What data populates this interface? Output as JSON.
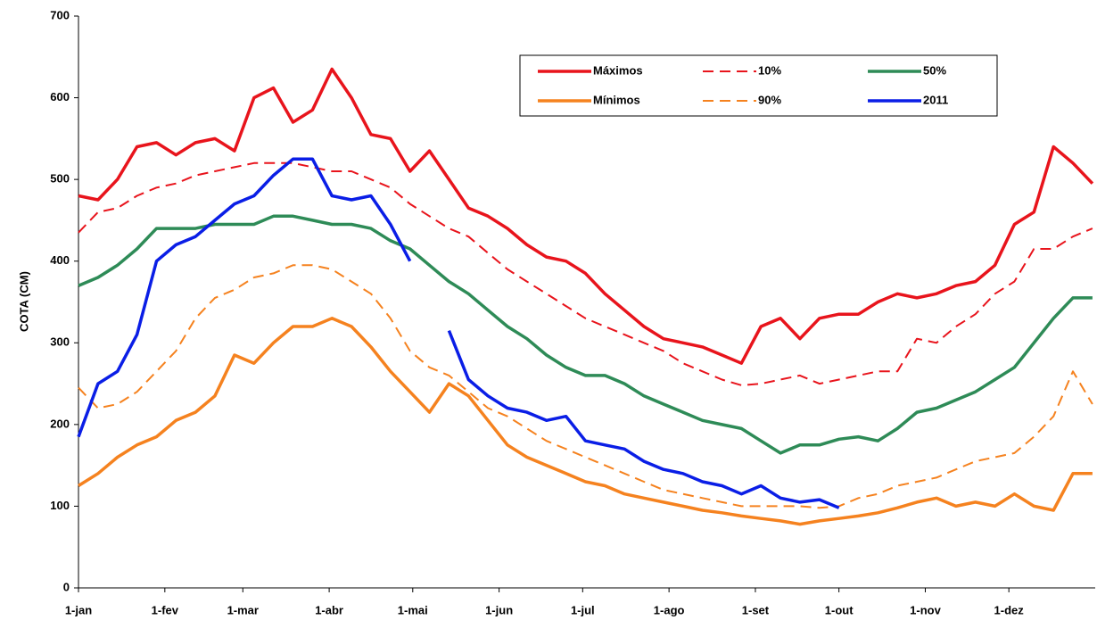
{
  "chart_data": {
    "type": "line",
    "y_label": "COTA (CM)",
    "x": [
      0,
      7,
      14,
      21,
      28,
      35,
      42,
      49,
      56,
      63,
      70,
      77,
      84,
      91,
      98,
      105,
      112,
      119,
      126,
      133,
      140,
      147,
      154,
      161,
      168,
      175,
      182,
      189,
      196,
      203,
      210,
      217,
      224,
      231,
      238,
      245,
      252,
      259,
      266,
      273,
      280,
      287,
      294,
      301,
      308,
      315,
      322,
      329,
      336,
      343,
      350,
      357,
      364
    ],
    "xlim": [
      0,
      365
    ],
    "xticks": [
      {
        "value": 0,
        "label": "1-jan"
      },
      {
        "value": 31,
        "label": "1-fev"
      },
      {
        "value": 59,
        "label": "1-mar"
      },
      {
        "value": 90,
        "label": "1-abr"
      },
      {
        "value": 120,
        "label": "1-mai"
      },
      {
        "value": 151,
        "label": "1-jun"
      },
      {
        "value": 181,
        "label": "1-jul"
      },
      {
        "value": 212,
        "label": "1-ago"
      },
      {
        "value": 243,
        "label": "1-set"
      },
      {
        "value": 273,
        "label": "1-out"
      },
      {
        "value": 304,
        "label": "1-nov"
      },
      {
        "value": 334,
        "label": "1-dez"
      }
    ],
    "ylim": [
      0,
      700
    ],
    "yticks": [
      0,
      100,
      200,
      300,
      400,
      500,
      600,
      700
    ],
    "grid": false,
    "legend": "top-right",
    "series": [
      {
        "name": "Máximos",
        "color": "#e8141c",
        "dash": false,
        "values": [
          480,
          475,
          500,
          540,
          545,
          530,
          545,
          550,
          535,
          600,
          612,
          570,
          585,
          635,
          600,
          555,
          550,
          510,
          535,
          500,
          465,
          455,
          440,
          420,
          405,
          400,
          385,
          360,
          340,
          320,
          305,
          300,
          295,
          285,
          275,
          320,
          330,
          305,
          330,
          335,
          335,
          350,
          360,
          355,
          360,
          370,
          375,
          395,
          445,
          460,
          540,
          520,
          495
        ]
      },
      {
        "name": "10%",
        "color": "#e8141c",
        "dash": true,
        "values": [
          435,
          460,
          465,
          480,
          490,
          495,
          505,
          510,
          515,
          520,
          520,
          520,
          515,
          510,
          510,
          500,
          490,
          470,
          455,
          440,
          430,
          410,
          390,
          375,
          360,
          345,
          330,
          320,
          310,
          300,
          290,
          275,
          265,
          255,
          248,
          250,
          255,
          260,
          250,
          255,
          260,
          265,
          265,
          305,
          300,
          320,
          335,
          360,
          375,
          415,
          415,
          430,
          440
        ]
      },
      {
        "name": "50%",
        "color": "#2e8b57",
        "dash": false,
        "values": [
          370,
          380,
          395,
          415,
          440,
          440,
          440,
          445,
          445,
          445,
          455,
          455,
          450,
          445,
          445,
          440,
          425,
          415,
          395,
          375,
          360,
          340,
          320,
          305,
          285,
          270,
          260,
          260,
          250,
          235,
          225,
          215,
          205,
          200,
          195,
          180,
          165,
          175,
          175,
          182,
          185,
          180,
          195,
          215,
          220,
          230,
          240,
          255,
          270,
          300,
          330,
          355,
          355
        ]
      },
      {
        "name": "Mínimos",
        "color": "#f5821f",
        "dash": false,
        "values": [
          125,
          140,
          160,
          175,
          185,
          205,
          215,
          235,
          285,
          275,
          300,
          320,
          320,
          330,
          320,
          295,
          265,
          240,
          215,
          250,
          235,
          205,
          175,
          160,
          150,
          140,
          130,
          125,
          115,
          110,
          105,
          100,
          95,
          92,
          88,
          85,
          82,
          78,
          82,
          85,
          88,
          92,
          98,
          105,
          110,
          100,
          105,
          100,
          115,
          100,
          95,
          140,
          140
        ]
      },
      {
        "name": "90%",
        "color": "#f5821f",
        "dash": true,
        "values": [
          245,
          220,
          225,
          240,
          265,
          290,
          330,
          355,
          365,
          380,
          385,
          395,
          395,
          390,
          375,
          360,
          330,
          290,
          270,
          260,
          240,
          220,
          210,
          195,
          180,
          170,
          160,
          150,
          140,
          130,
          120,
          115,
          110,
          105,
          100,
          100,
          100,
          100,
          98,
          100,
          110,
          115,
          125,
          130,
          135,
          145,
          155,
          160,
          165,
          185,
          210,
          265,
          225
        ]
      },
      {
        "name": "2011",
        "color": "#0a1ee6",
        "dash": false,
        "values": [
          185,
          250,
          265,
          310,
          400,
          420,
          430,
          450,
          470,
          480,
          505,
          525,
          525,
          480,
          475,
          480,
          445,
          400,
          null,
          315,
          255,
          235,
          220,
          215,
          205,
          210,
          180,
          175,
          170,
          155,
          145,
          140,
          130,
          125,
          115,
          125,
          110,
          105,
          108,
          98,
          null,
          null,
          null,
          null,
          null,
          null,
          null,
          null,
          null,
          null,
          null,
          null,
          null
        ]
      }
    ]
  }
}
